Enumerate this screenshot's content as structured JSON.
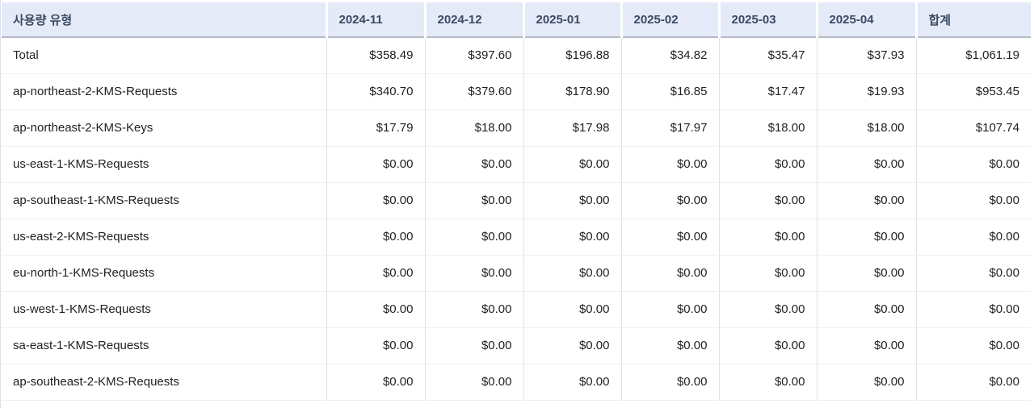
{
  "table": {
    "title": "usage-type-cost-table",
    "columns": [
      "사용량 유형",
      "2024-11",
      "2024-12",
      "2025-01",
      "2025-02",
      "2025-03",
      "2025-04",
      "합계"
    ],
    "rows": [
      {
        "label": "Total",
        "values": [
          "$358.49",
          "$397.60",
          "$196.88",
          "$34.82",
          "$35.47",
          "$37.93",
          "$1,061.19"
        ]
      },
      {
        "label": "ap-northeast-2-KMS-Requests",
        "values": [
          "$340.70",
          "$379.60",
          "$178.90",
          "$16.85",
          "$17.47",
          "$19.93",
          "$953.45"
        ]
      },
      {
        "label": "ap-northeast-2-KMS-Keys",
        "values": [
          "$17.79",
          "$18.00",
          "$17.98",
          "$17.97",
          "$18.00",
          "$18.00",
          "$107.74"
        ]
      },
      {
        "label": "us-east-1-KMS-Requests",
        "values": [
          "$0.00",
          "$0.00",
          "$0.00",
          "$0.00",
          "$0.00",
          "$0.00",
          "$0.00"
        ]
      },
      {
        "label": "ap-southeast-1-KMS-Requests",
        "values": [
          "$0.00",
          "$0.00",
          "$0.00",
          "$0.00",
          "$0.00",
          "$0.00",
          "$0.00"
        ]
      },
      {
        "label": "us-east-2-KMS-Requests",
        "values": [
          "$0.00",
          "$0.00",
          "$0.00",
          "$0.00",
          "$0.00",
          "$0.00",
          "$0.00"
        ]
      },
      {
        "label": "eu-north-1-KMS-Requests",
        "values": [
          "$0.00",
          "$0.00",
          "$0.00",
          "$0.00",
          "$0.00",
          "$0.00",
          "$0.00"
        ]
      },
      {
        "label": "us-west-1-KMS-Requests",
        "values": [
          "$0.00",
          "$0.00",
          "$0.00",
          "$0.00",
          "$0.00",
          "$0.00",
          "$0.00"
        ]
      },
      {
        "label": "sa-east-1-KMS-Requests",
        "values": [
          "$0.00",
          "$0.00",
          "$0.00",
          "$0.00",
          "$0.00",
          "$0.00",
          "$0.00"
        ]
      },
      {
        "label": "ap-southeast-2-KMS-Requests",
        "values": [
          "$0.00",
          "$0.00",
          "$0.00",
          "$0.00",
          "$0.00",
          "$0.00",
          "$0.00"
        ]
      }
    ],
    "colors": {
      "header_bg": "#e5eaf8",
      "header_text": "#3b4a63",
      "header_divider": "#b4bbc6",
      "row_divider": "#efefef",
      "column_divider": "#dbe2ee",
      "body_text": "#1d1f23"
    }
  }
}
